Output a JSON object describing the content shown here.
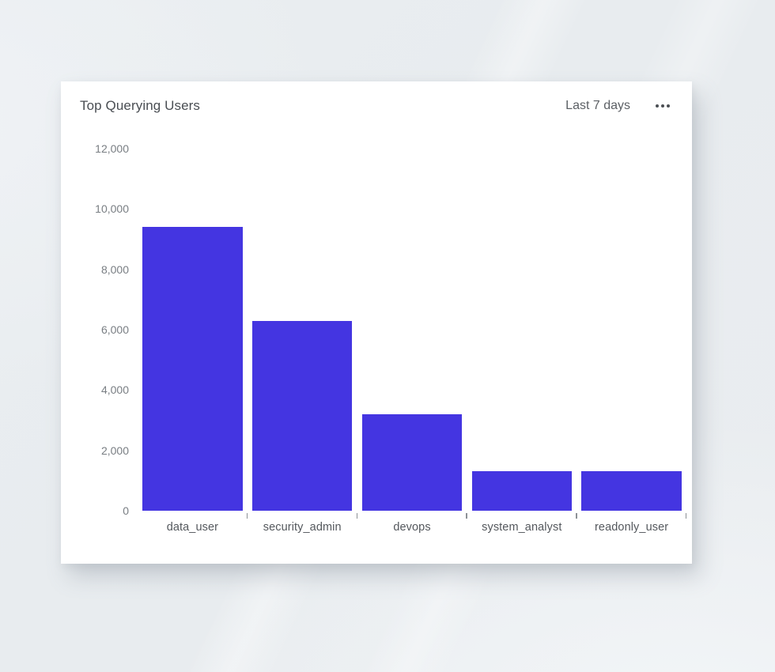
{
  "card": {
    "title": "Top Querying Users",
    "range_label": "Last 7 days",
    "menu_icon": "ellipsis-horizontal"
  },
  "chart_data": {
    "type": "bar",
    "title": "Top Querying Users",
    "categories": [
      "data_user",
      "security_admin",
      "devops",
      "system_analyst",
      "readonly_user"
    ],
    "values": [
      9400,
      6300,
      3200,
      1300,
      1300
    ],
    "y_tick_labels": [
      "12,000",
      "10,000",
      "8,000",
      "6,000",
      "4,000",
      "2,000",
      "0"
    ],
    "y_tick_values": [
      12000,
      10000,
      8000,
      6000,
      4000,
      2000,
      0
    ],
    "xlabel": "",
    "ylabel": "",
    "ylim": [
      0,
      12000
    ],
    "grid": false,
    "legend": false,
    "bar_color": "#4435e1"
  },
  "colors": {
    "background": "#e9edf0",
    "card": "#ffffff",
    "title_text": "#4a4e53",
    "axis_label_text": "#797e83",
    "category_label_text": "#54585d",
    "bar": "#4435e1"
  }
}
